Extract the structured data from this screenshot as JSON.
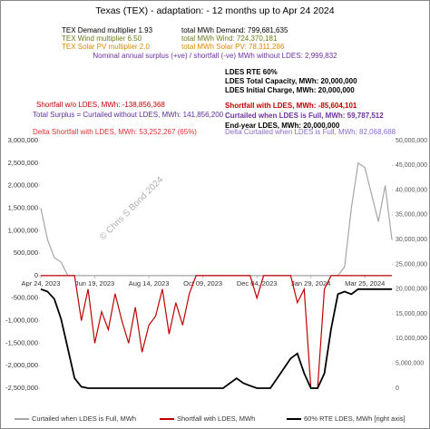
{
  "chart_data": {
    "type": "line",
    "title": "Texas (TEX) - adaptation: - 12 months up to  Apr 24 2024",
    "annotations": [
      {
        "text": "TEX Demand multiplier  1.93",
        "color": "#000000"
      },
      {
        "text": "TEX Wind multiplier  6.50",
        "color": "#6b7a1e"
      },
      {
        "text": "TEX Solar PV multiplier  2.0",
        "color": "#d98c00"
      },
      {
        "text": "total MWh Demand:  799,681,635",
        "color": "#000000"
      },
      {
        "text": "total MWh Wind:  724,370,181",
        "color": "#6b7a1e"
      },
      {
        "text": "total MWh Solar PV:  78,311,286",
        "color": "#d98c00"
      },
      {
        "text": "Nominal annual surplus (+ve) / shortfall (-ve) MWh without LDES:  2,999,832",
        "color": "#7030a0"
      },
      {
        "text": "LDES RTE 60%",
        "color": "#000000"
      },
      {
        "text": "LDES Total Capacity, MWh:  20,000,000",
        "color": "#000000"
      },
      {
        "text": "LDES Initial Charge, MWh:  20,000,000",
        "color": "#000000"
      },
      {
        "text": "Shortfall w/o LDES, MWh:  -138,856,368",
        "color": "#c00000"
      },
      {
        "text": "Total Surplus = Curtailed without LDES, MWh:  141,856,200",
        "color": "#5b2fa0"
      },
      {
        "text": "Shortfall with LDES, MWh:  -85,604,101",
        "color": "#c00000"
      },
      {
        "text": "Curtailed when LDES is Full, MWh:  59,787,512",
        "color": "#7030a0"
      },
      {
        "text": "End-year LDES, MWh:  20,000,000",
        "color": "#000000"
      },
      {
        "text": "Delta Shortfall with LDES, MWh:  53,252,267  (65%)",
        "color": "#e03030"
      },
      {
        "text": "Delta Curtailed when LDES is Full, MWh:  82,068,688",
        "color": "#8a6cc8"
      }
    ],
    "watermark": "© Chris S Bond  2024",
    "categories": [
      "Apr 24, 2023",
      null,
      null,
      null,
      null,
      null,
      null,
      null,
      "Jun 19, 2023",
      null,
      null,
      null,
      null,
      null,
      null,
      null,
      "Aug 14, 2023",
      null,
      null,
      null,
      null,
      null,
      null,
      null,
      "Oct 09, 2023",
      null,
      null,
      null,
      null,
      null,
      null,
      null,
      "Dec 04, 2023",
      null,
      null,
      null,
      null,
      null,
      null,
      null,
      "Jan 29, 2024",
      null,
      null,
      null,
      null,
      null,
      null,
      null,
      "Mar 25, 2024",
      null,
      null,
      null,
      null
    ],
    "series": [
      {
        "name": "Curtailed when LDES is Full, MWh",
        "color": "#a6a6a6",
        "values": [
          1500000,
          800000,
          400000,
          300000,
          0,
          0,
          0,
          0,
          0,
          0,
          0,
          0,
          0,
          0,
          0,
          0,
          0,
          0,
          0,
          0,
          0,
          0,
          0,
          0,
          0,
          0,
          0,
          0,
          0,
          0,
          0,
          0,
          0,
          0,
          0,
          0,
          0,
          0,
          0,
          0,
          0,
          0,
          0,
          0,
          0,
          200000,
          1500000,
          2500000,
          2400000,
          1800000,
          1200000,
          2000000,
          800000
        ]
      },
      {
        "name": "Shortfall with LDES, MWh",
        "color": "#c00000",
        "values": [
          0,
          0,
          0,
          0,
          0,
          0,
          -1000000,
          -300000,
          -1500000,
          -800000,
          -1200000,
          -400000,
          -1000000,
          -1500000,
          -700000,
          -1700000,
          -1100000,
          -900000,
          -300000,
          -1300000,
          -600000,
          -1100000,
          -400000,
          0,
          0,
          0,
          0,
          0,
          0,
          0,
          0,
          0,
          -500000,
          0,
          0,
          0,
          0,
          0,
          -600000,
          -300000,
          -2500000,
          -2500000,
          -300000,
          0,
          0,
          0,
          0,
          0,
          0,
          0,
          0,
          0,
          0
        ]
      },
      {
        "name": "60%  RTE LDES, MWh [right axis]",
        "color": "#000000",
        "axis": "y2",
        "values": [
          20000000,
          19500000,
          18000000,
          14000000,
          8000000,
          2000000,
          300000,
          0,
          0,
          0,
          0,
          0,
          0,
          0,
          0,
          0,
          0,
          0,
          0,
          0,
          0,
          0,
          0,
          0,
          0,
          0,
          0,
          0,
          1000000,
          2000000,
          1000000,
          500000,
          0,
          0,
          0,
          2000000,
          4000000,
          6000000,
          7000000,
          3000000,
          0,
          0,
          3000000,
          12000000,
          19000000,
          19500000,
          19000000,
          20000000,
          20000000,
          20000000,
          20000000,
          20000000,
          20000000
        ]
      }
    ],
    "ylim": [
      -2500000,
      3000000
    ],
    "yticks": [
      {
        "value": -2500000,
        "label": "-2,500,000"
      },
      {
        "value": -2000000,
        "label": "-2,000,000"
      },
      {
        "value": -1500000,
        "label": "-1,500,000"
      },
      {
        "value": -1000000,
        "label": "-1,000,000"
      },
      {
        "value": -500000,
        "label": "-500,000"
      },
      0,
      {
        "value": 500000,
        "label": "500,000"
      },
      {
        "value": 1000000,
        "label": "1,000,000"
      },
      {
        "value": 1500000,
        "label": "1,500,000"
      },
      {
        "value": 2000000,
        "label": "2,000,000"
      },
      {
        "value": 2500000,
        "label": "2,500,000"
      },
      {
        "value": 3000000,
        "label": "3,000,000"
      }
    ],
    "y2lim": [
      0,
      50000000
    ],
    "y2ticks": [
      0,
      {
        "value": 5000000,
        "label": "5,000,000"
      },
      {
        "value": 10000000,
        "label": "10,000,000"
      },
      {
        "value": 15000000,
        "label": "15,000,000"
      },
      {
        "value": 20000000,
        "label": "20,000,000"
      },
      {
        "value": 25000000,
        "label": "25,000,000"
      },
      {
        "value": 30000000,
        "label": "30,000,000"
      },
      {
        "value": 35000000,
        "label": "35,000,000"
      },
      {
        "value": 40000000,
        "label": "40,000,000"
      },
      {
        "value": 45000000,
        "label": "45,000,000"
      },
      {
        "value": 50000000,
        "label": "50,000,000"
      }
    ],
    "grid": false,
    "legend": "bottom"
  }
}
